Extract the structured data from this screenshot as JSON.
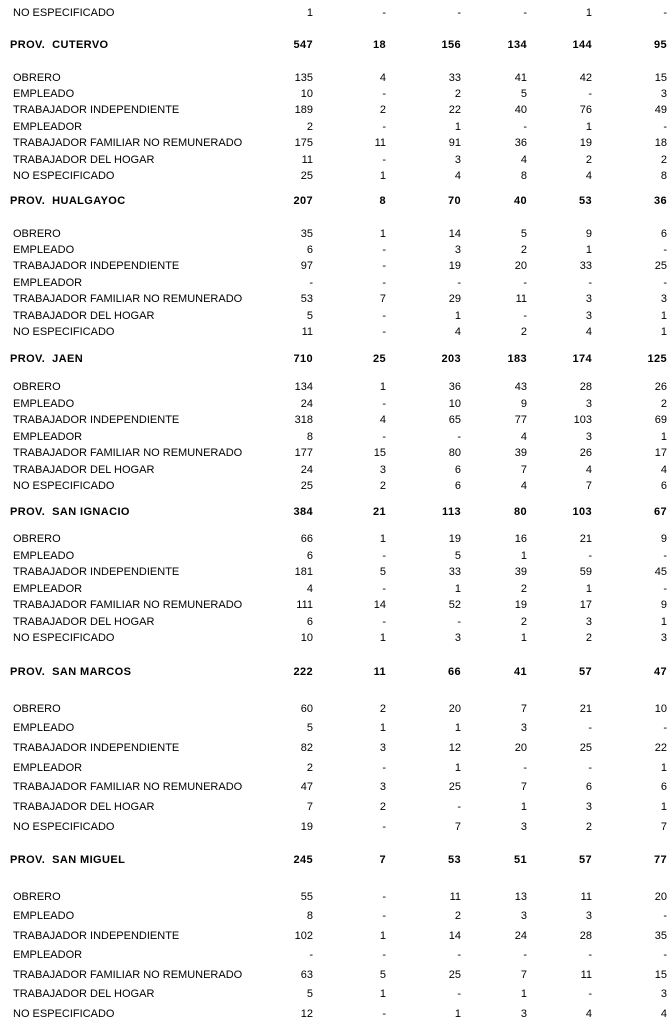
{
  "table": {
    "columns_count": 6,
    "leading_rows": [
      {
        "label": "NO ESPECIFICADO",
        "values": [
          "1",
          "-",
          "-",
          "-",
          "1",
          "-"
        ]
      }
    ],
    "sections": [
      {
        "province": "PROV.  CUTERVO",
        "totals": [
          "547",
          "18",
          "156",
          "134",
          "144",
          "95"
        ],
        "rows": [
          {
            "label": "OBRERO",
            "values": [
              "135",
              "4",
              "33",
              "41",
              "42",
              "15"
            ]
          },
          {
            "label": "EMPLEADO",
            "values": [
              "10",
              "-",
              "2",
              "5",
              "-",
              "3"
            ]
          },
          {
            "label": "TRABAJADOR INDEPENDIENTE",
            "values": [
              "189",
              "2",
              "22",
              "40",
              "76",
              "49"
            ]
          },
          {
            "label": "EMPLEADOR",
            "values": [
              "2",
              "-",
              "1",
              "-",
              "1",
              "-"
            ]
          },
          {
            "label": "TRABAJADOR FAMILIAR NO REMUNERADO",
            "values": [
              "175",
              "11",
              "91",
              "36",
              "19",
              "18"
            ]
          },
          {
            "label": "TRABAJADOR DEL HOGAR",
            "values": [
              "11",
              "-",
              "3",
              "4",
              "2",
              "2"
            ]
          },
          {
            "label": "NO ESPECIFICADO",
            "values": [
              "25",
              "1",
              "4",
              "8",
              "4",
              "8"
            ]
          }
        ]
      },
      {
        "province": "PROV.  HUALGAYOC",
        "totals": [
          "207",
          "8",
          "70",
          "40",
          "53",
          "36"
        ],
        "rows": [
          {
            "label": "OBRERO",
            "values": [
              "35",
              "1",
              "14",
              "5",
              "9",
              "6"
            ]
          },
          {
            "label": "EMPLEADO",
            "values": [
              "6",
              "-",
              "3",
              "2",
              "1",
              "-"
            ]
          },
          {
            "label": "TRABAJADOR INDEPENDIENTE",
            "values": [
              "97",
              "-",
              "19",
              "20",
              "33",
              "25"
            ]
          },
          {
            "label": "EMPLEADOR",
            "values": [
              "-",
              "-",
              "-",
              "-",
              "-",
              "-"
            ]
          },
          {
            "label": "TRABAJADOR FAMILIAR NO REMUNERADO",
            "values": [
              "53",
              "7",
              "29",
              "11",
              "3",
              "3"
            ]
          },
          {
            "label": "TRABAJADOR DEL HOGAR",
            "values": [
              "5",
              "-",
              "1",
              "-",
              "3",
              "1"
            ]
          },
          {
            "label": "NO ESPECIFICADO",
            "values": [
              "11",
              "-",
              "4",
              "2",
              "4",
              "1"
            ]
          }
        ]
      },
      {
        "province": "PROV.  JAEN",
        "totals": [
          "710",
          "25",
          "203",
          "183",
          "174",
          "125"
        ],
        "rows": [
          {
            "label": "OBRERO",
            "values": [
              "134",
              "1",
              "36",
              "43",
              "28",
              "26"
            ]
          },
          {
            "label": "EMPLEADO",
            "values": [
              "24",
              "-",
              "10",
              "9",
              "3",
              "2"
            ]
          },
          {
            "label": "TRABAJADOR INDEPENDIENTE",
            "values": [
              "318",
              "4",
              "65",
              "77",
              "103",
              "69"
            ]
          },
          {
            "label": "EMPLEADOR",
            "values": [
              "8",
              "-",
              "-",
              "4",
              "3",
              "1"
            ]
          },
          {
            "label": "TRABAJADOR FAMILIAR NO REMUNERADO",
            "values": [
              "177",
              "15",
              "80",
              "39",
              "26",
              "17"
            ]
          },
          {
            "label": "TRABAJADOR DEL HOGAR",
            "values": [
              "24",
              "3",
              "6",
              "7",
              "4",
              "4"
            ]
          },
          {
            "label": "NO ESPECIFICADO",
            "values": [
              "25",
              "2",
              "6",
              "4",
              "7",
              "6"
            ]
          }
        ]
      },
      {
        "province": "PROV.  SAN IGNACIO",
        "totals": [
          "384",
          "21",
          "113",
          "80",
          "103",
          "67"
        ],
        "rows": [
          {
            "label": "OBRERO",
            "values": [
              "66",
              "1",
              "19",
              "16",
              "21",
              "9"
            ]
          },
          {
            "label": "EMPLEADO",
            "values": [
              "6",
              "-",
              "5",
              "1",
              "-",
              "-"
            ]
          },
          {
            "label": "TRABAJADOR INDEPENDIENTE",
            "values": [
              "181",
              "5",
              "33",
              "39",
              "59",
              "45"
            ]
          },
          {
            "label": "EMPLEADOR",
            "values": [
              "4",
              "-",
              "1",
              "2",
              "1",
              "-"
            ]
          },
          {
            "label": "TRABAJADOR FAMILIAR NO REMUNERADO",
            "values": [
              "111",
              "14",
              "52",
              "19",
              "17",
              "9"
            ]
          },
          {
            "label": "TRABAJADOR DEL HOGAR",
            "values": [
              "6",
              "-",
              "-",
              "2",
              "3",
              "1"
            ]
          },
          {
            "label": "NO ESPECIFICADO",
            "values": [
              "10",
              "1",
              "3",
              "1",
              "2",
              "3"
            ]
          }
        ]
      },
      {
        "province": "PROV.  SAN MARCOS",
        "totals": [
          "222",
          "11",
          "66",
          "41",
          "57",
          "47"
        ],
        "rows": [
          {
            "label": "OBRERO",
            "values": [
              "60",
              "2",
              "20",
              "7",
              "21",
              "10"
            ]
          },
          {
            "label": "EMPLEADO",
            "values": [
              "5",
              "1",
              "1",
              "3",
              "-",
              "-"
            ]
          },
          {
            "label": "TRABAJADOR INDEPENDIENTE",
            "values": [
              "82",
              "3",
              "12",
              "20",
              "25",
              "22"
            ]
          },
          {
            "label": "EMPLEADOR",
            "values": [
              "2",
              "-",
              "1",
              "-",
              "-",
              "1"
            ]
          },
          {
            "label": "TRABAJADOR FAMILIAR NO REMUNERADO",
            "values": [
              "47",
              "3",
              "25",
              "7",
              "6",
              "6"
            ]
          },
          {
            "label": "TRABAJADOR DEL HOGAR",
            "values": [
              "7",
              "2",
              "-",
              "1",
              "3",
              "1"
            ]
          },
          {
            "label": "NO ESPECIFICADO",
            "values": [
              "19",
              "-",
              "7",
              "3",
              "2",
              "7"
            ]
          }
        ]
      },
      {
        "province": "PROV.  SAN MIGUEL",
        "totals": [
          "245",
          "7",
          "53",
          "51",
          "57",
          "77"
        ],
        "rows": [
          {
            "label": "OBRERO",
            "values": [
              "55",
              "-",
              "11",
              "13",
              "11",
              "20"
            ]
          },
          {
            "label": "EMPLEADO",
            "values": [
              "8",
              "-",
              "2",
              "3",
              "3",
              "-"
            ]
          },
          {
            "label": "TRABAJADOR INDEPENDIENTE",
            "values": [
              "102",
              "1",
              "14",
              "24",
              "28",
              "35"
            ]
          },
          {
            "label": "EMPLEADOR",
            "values": [
              "-",
              "-",
              "-",
              "-",
              "-",
              "-"
            ]
          },
          {
            "label": "TRABAJADOR FAMILIAR NO REMUNERADO",
            "values": [
              "63",
              "5",
              "25",
              "7",
              "11",
              "15"
            ]
          },
          {
            "label": "TRABAJADOR DEL HOGAR",
            "values": [
              "5",
              "1",
              "-",
              "1",
              "-",
              "3"
            ]
          },
          {
            "label": "NO ESPECIFICADO",
            "values": [
              "12",
              "-",
              "1",
              "3",
              "4",
              "4"
            ]
          }
        ]
      }
    ]
  }
}
